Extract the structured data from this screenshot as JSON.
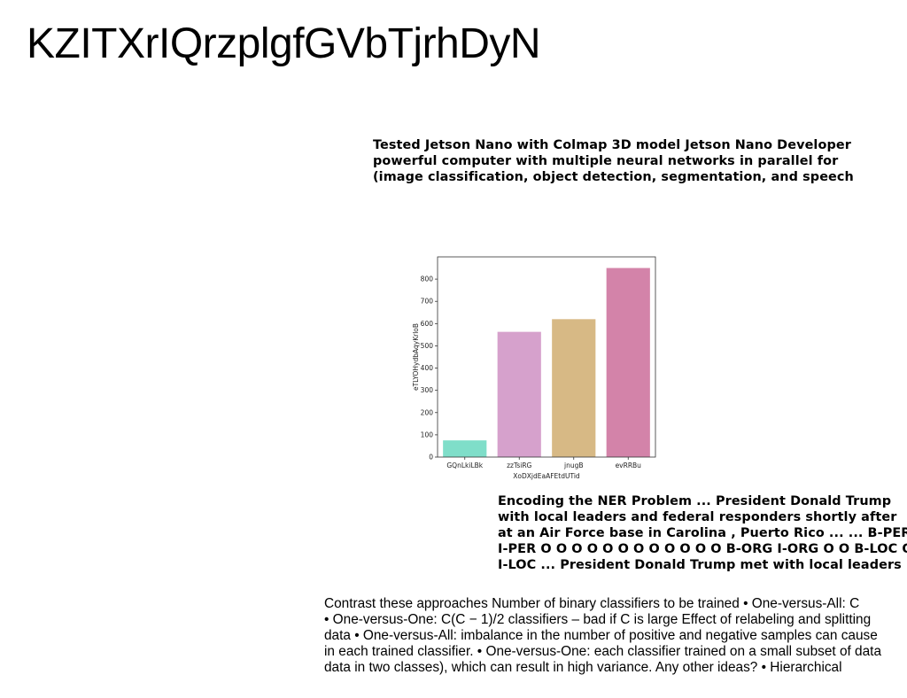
{
  "title": "KZITXrIQrzplgfGVbTjrhDyN",
  "text_top": [
    "Tested Jetson Nano with Colmap 3D model Jetson Nano Developer",
    "powerful computer with multiple neural networks in parallel for",
    "(image classification, object detection, segmentation, and speech"
  ],
  "text_ner": [
    "Encoding the NER Problem ... President Donald Trump",
    "with local leaders and federal responders shortly after",
    "at an Air Force base in Carolina , Puerto Rico ... ... B-PER",
    "I-PER O O O O O O O O O O O O B-ORG I-ORG O O B-LOC O",
    "I-LOC ... President Donald Trump met with local leaders"
  ],
  "text_bottom": [
    "Contrast these approaches Number of binary classifiers to be trained • One-versus-All: C",
    "• One-versus-One: C(C − 1)/2 classifiers – bad if C is large Effect of relabeling and splitting",
    "data • One-versus-All: imbalance in the number of positive and negative samples can cause",
    "in each trained classifier. • One-versus-One: each classifier trained on a small subset of data",
    "data in two classes), which can result in high variance. Any other ideas? • Hierarchical"
  ],
  "chart_data": {
    "type": "bar",
    "categories": [
      "GQnLkiLBk",
      "zzTsiRG",
      "jnugB",
      "evRRBu"
    ],
    "values": [
      75,
      563,
      620,
      850
    ],
    "colors": [
      "#7fdec9",
      "#d6a1cc",
      "#d7b985",
      "#d383a9"
    ],
    "xlabel": "XoDXjdEaAFEtdUTid",
    "ylabel": "eTLYOHydbAqyKrloB",
    "ylim": [
      0,
      900
    ],
    "yticks": [
      0,
      100,
      200,
      300,
      400,
      500,
      600,
      700,
      800
    ],
    "grid": false
  }
}
